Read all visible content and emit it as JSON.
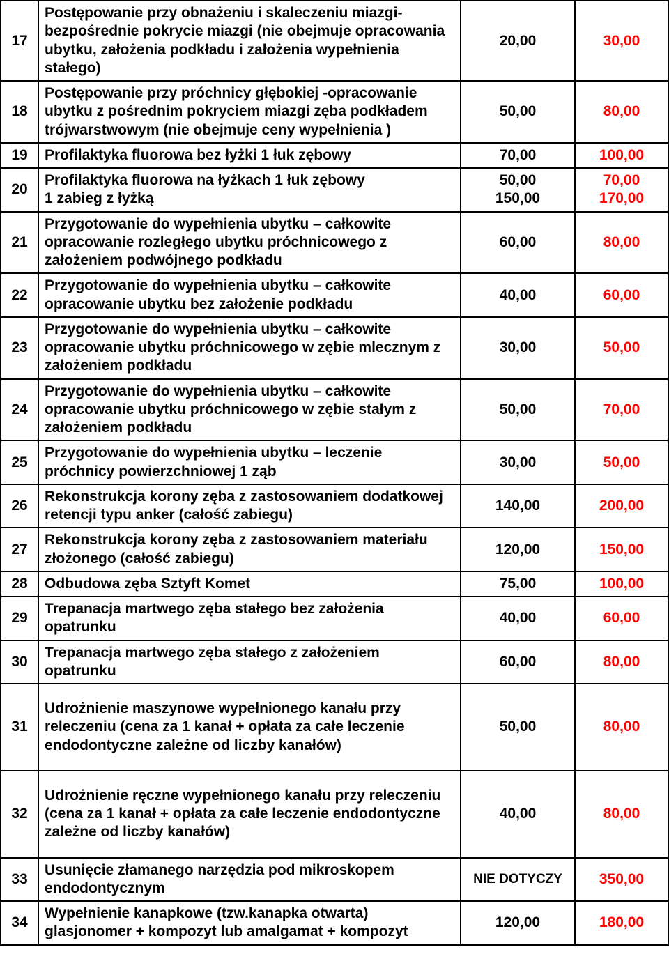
{
  "rows": [
    {
      "n": "17",
      "desc": "Postępowanie przy obnażeniu i skaleczeniu miazgi- bezpośrednie pokrycie miazgi (nie obejmuje opracowania ubytku, założenia podkładu i założenia wypełnienia stałego)",
      "p1": "20,00",
      "p2": "30,00"
    },
    {
      "n": "18",
      "desc": "Postępowanie przy próchnicy głębokiej -opracowanie ubytku  z pośrednim pokryciem miazgi zęba podkładem trójwarstwowym (nie obejmuje ceny wypełnienia )",
      "p1": "50,00",
      "p2": "80,00"
    },
    {
      "n": "19",
      "desc": "Profilaktyka fluorowa bez łyżki 1 łuk zębowy",
      "p1": "70,00",
      "p2": "100,00"
    },
    {
      "n": "20",
      "desc": "Profilaktyka fluorowa na łyżkach 1 łuk zębowy\n1 zabieg z łyżką",
      "p1a": "50,00",
      "p1b": "150,00",
      "p2a": "70,00",
      "p2b": "170,00",
      "double": true
    },
    {
      "n": "21",
      "desc": "Przygotowanie do wypełnienia ubytku – całkowite opracowanie rozległego ubytku próchnicowego z założeniem podwójnego  podkładu",
      "p1": "60,00",
      "p2": "80,00"
    },
    {
      "n": "22",
      "desc": "Przygotowanie do wypełnienia ubytku – całkowite opracowanie ubytku bez założenie podkładu",
      "p1": "40,00",
      "p2": "60,00"
    },
    {
      "n": "23",
      "desc": "Przygotowanie do wypełnienia ubytku – całkowite opracowanie ubytku próchnicowego w zębie mlecznym z założeniem podkładu",
      "p1": "30,00",
      "p2": "50,00"
    },
    {
      "n": "24",
      "desc": "Przygotowanie do wypełnienia ubytku – całkowite opracowanie ubytku próchnicowego w zębie stałym z założeniem podkładu",
      "p1": "50,00",
      "p2": "70,00"
    },
    {
      "n": "25",
      "desc": "Przygotowanie do wypełnienia ubytku – leczenie próchnicy powierzchniowej 1 ząb",
      "p1": "30,00",
      "p2": "50,00"
    },
    {
      "n": "26",
      "desc": "Rekonstrukcja korony zęba z zastosowaniem dodatkowej retencji typu anker (całość zabiegu)",
      "p1": "140,00",
      "p2": "200,00"
    },
    {
      "n": "27",
      "desc": "Rekonstrukcja korony zęba z zastosowaniem materiału złożonego (całość zabiegu)",
      "p1": "120,00",
      "p2": "150,00"
    },
    {
      "n": "28",
      "desc": "Odbudowa zęba Sztyft Komet",
      "p1": "75,00",
      "p2": "100,00"
    },
    {
      "n": "29",
      "desc": "Trepanacja martwego zęba stałego bez założenia opatrunku",
      "p1": "40,00",
      "p2": "60,00"
    },
    {
      "n": "30",
      "desc": "Trepanacja martwego zęba stałego z założeniem opatrunku",
      "p1": "60,00",
      "p2": "80,00"
    },
    {
      "n": "31",
      "desc": "Udrożnienie maszynowe wypełnionego kanału przy releczeniu (cena za 1 kanał + opłata za całe leczenie endodontyczne zależne od liczby kanałów)",
      "p1": "50,00",
      "p2": "80,00",
      "pad": true
    },
    {
      "n": "32",
      "desc": "Udrożnienie ręczne wypełnionego kanału przy releczeniu (cena za 1 kanał + opłata za całe leczenie endodontyczne zależne od liczby kanałów)",
      "p1": "40,00",
      "p2": "80,00",
      "pad": true
    },
    {
      "n": "33",
      "desc": "Usunięcie złamanego narzędzia pod mikroskopem endodontycznym",
      "p1": "NIE DOTYCZY",
      "p2": "350,00",
      "p1font": "19px"
    },
    {
      "n": "34",
      "desc": "Wypełnienie kanapkowe (tzw.kanapka otwarta)  glasjonomer + kompozyt lub amalgamat + kompozyt",
      "p1": "120,00",
      "p2": "180,00"
    }
  ]
}
